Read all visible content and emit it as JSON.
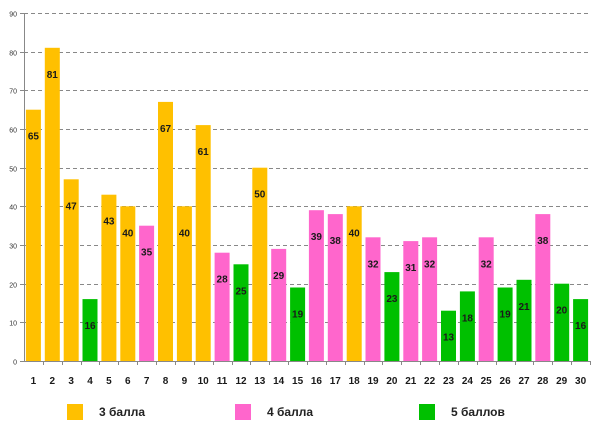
{
  "chart_data": {
    "type": "bar",
    "title": "",
    "xlabel": "",
    "ylabel": "",
    "ylim": [
      0,
      90
    ],
    "yticks": [
      0,
      10,
      20,
      30,
      40,
      50,
      60,
      70,
      80,
      90
    ],
    "grid": true,
    "legend_position": "bottom",
    "categories": [
      "1",
      "2",
      "3",
      "4",
      "5",
      "6",
      "7",
      "8",
      "9",
      "10",
      "11",
      "12",
      "13",
      "14",
      "15",
      "16",
      "17",
      "18",
      "19",
      "20",
      "21",
      "22",
      "23",
      "24",
      "25",
      "26",
      "27",
      "28",
      "29",
      "30"
    ],
    "values": [
      65,
      81,
      47,
      16,
      43,
      40,
      35,
      67,
      40,
      61,
      28,
      25,
      50,
      29,
      19,
      39,
      38,
      40,
      32,
      23,
      31,
      32,
      13,
      18,
      32,
      19,
      21,
      38,
      20,
      16
    ],
    "groups": [
      "3",
      "3",
      "3",
      "5",
      "3",
      "3",
      "4",
      "3",
      "3",
      "3",
      "4",
      "5",
      "3",
      "4",
      "5",
      "4",
      "4",
      "3",
      "4",
      "5",
      "4",
      "4",
      "5",
      "5",
      "4",
      "5",
      "5",
      "4",
      "5",
      "5"
    ],
    "series": [
      {
        "key": "3",
        "name": "3 балла",
        "color": "#ffc000"
      },
      {
        "key": "4",
        "name": "4 балла",
        "color": "#ff66cc"
      },
      {
        "key": "5",
        "name": "5 баллов",
        "color": "#00c000"
      }
    ]
  },
  "legend": {
    "items": [
      {
        "label": "3 балла",
        "color": "#ffc000"
      },
      {
        "label": "4 балла",
        "color": "#ff66cc"
      },
      {
        "label": "5 баллов",
        "color": "#00c000"
      }
    ]
  }
}
